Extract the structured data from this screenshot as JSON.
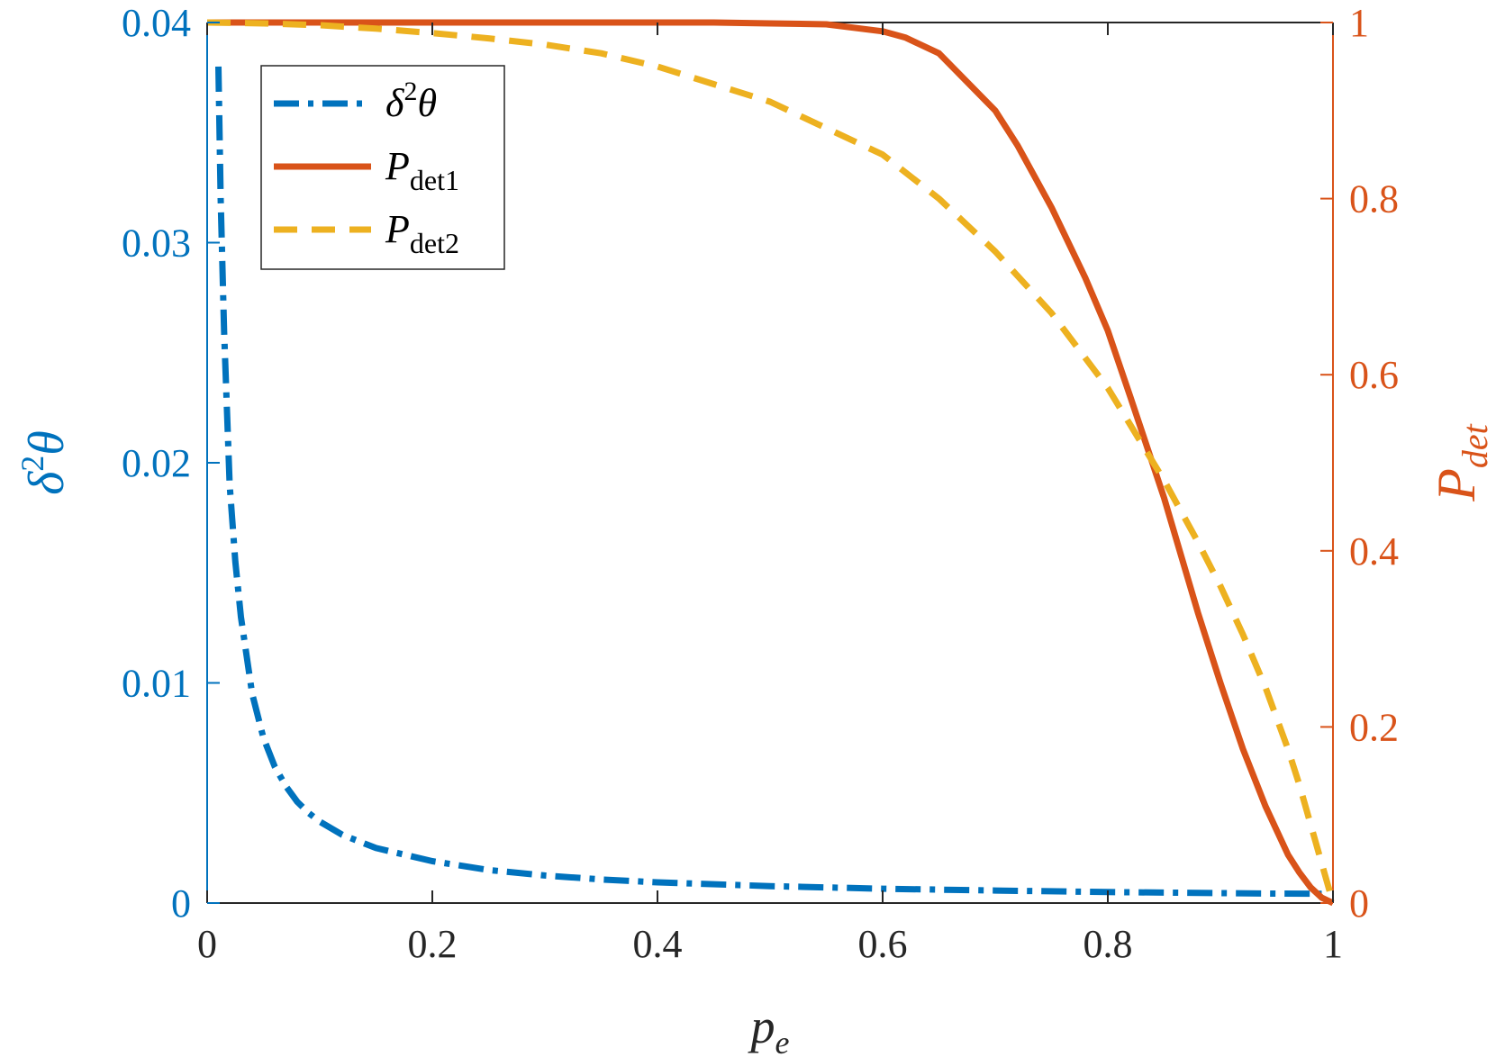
{
  "colors": {
    "left_axis": "#0072BD",
    "right_axis": "#D95319",
    "dashed": "#EDB120",
    "frame": "#262626"
  },
  "chart_data": {
    "type": "line",
    "xlabel": {
      "main": "p",
      "sub": "e"
    },
    "ylabel_left": {
      "main": "δ",
      "sup": "2",
      "tail": "θ"
    },
    "ylabel_right": {
      "main": "P",
      "sub": "det"
    },
    "xlim": [
      0,
      1
    ],
    "ylim_left": [
      0,
      0.04
    ],
    "ylim_right": [
      0,
      1
    ],
    "x_ticks": [
      "0",
      "0.2",
      "0.4",
      "0.6",
      "0.8",
      "1"
    ],
    "x_tick_values": [
      0,
      0.2,
      0.4,
      0.6,
      0.8,
      1
    ],
    "y_left_ticks": [
      "0",
      "0.01",
      "0.02",
      "0.03",
      "0.04"
    ],
    "y_left_tick_values": [
      0,
      0.01,
      0.02,
      0.03,
      0.04
    ],
    "y_right_ticks": [
      "0",
      "0.2",
      "0.4",
      "0.6",
      "0.8",
      "1"
    ],
    "y_right_tick_values": [
      0,
      0.2,
      0.4,
      0.6,
      0.8,
      1
    ],
    "grid": false,
    "legend_position": "top-left",
    "series": [
      {
        "legend": {
          "main": "δ",
          "sup": "2",
          "tail": "θ"
        },
        "axis": "left",
        "style": "dashdot",
        "x": [
          0.01,
          0.012,
          0.015,
          0.02,
          0.025,
          0.03,
          0.04,
          0.05,
          0.06,
          0.07,
          0.08,
          0.09,
          0.1,
          0.12,
          0.15,
          0.2,
          0.25,
          0.3,
          0.35,
          0.4,
          0.5,
          0.6,
          0.7,
          0.8,
          0.9,
          0.95,
          0.99
        ],
        "y": [
          0.038,
          0.032,
          0.026,
          0.019,
          0.0155,
          0.013,
          0.0095,
          0.0075,
          0.0062,
          0.0053,
          0.0046,
          0.0041,
          0.0037,
          0.0031,
          0.0025,
          0.0019,
          0.0015,
          0.00125,
          0.00107,
          0.00094,
          0.00077,
          0.00065,
          0.00057,
          0.0005,
          0.00045,
          0.00043,
          0.00042
        ]
      },
      {
        "legend": {
          "main": "P",
          "sub": "det1"
        },
        "axis": "right",
        "style": "solid",
        "x": [
          0,
          0.1,
          0.2,
          0.3,
          0.4,
          0.45,
          0.5,
          0.55,
          0.6,
          0.62,
          0.65,
          0.7,
          0.72,
          0.75,
          0.78,
          0.8,
          0.82,
          0.85,
          0.88,
          0.9,
          0.92,
          0.94,
          0.96,
          0.97,
          0.98,
          0.99,
          1.0
        ],
        "y": [
          1,
          1,
          1,
          1,
          1,
          1,
          0.999,
          0.998,
          0.99,
          0.983,
          0.965,
          0.9,
          0.86,
          0.79,
          0.71,
          0.65,
          0.575,
          0.46,
          0.33,
          0.25,
          0.175,
          0.11,
          0.055,
          0.035,
          0.018,
          0.006,
          0
        ]
      },
      {
        "legend": {
          "main": "P",
          "sub": "det2"
        },
        "axis": "right",
        "style": "dashed",
        "x": [
          0,
          0.05,
          0.1,
          0.15,
          0.2,
          0.25,
          0.3,
          0.35,
          0.4,
          0.45,
          0.5,
          0.55,
          0.6,
          0.65,
          0.7,
          0.75,
          0.8,
          0.85,
          0.88,
          0.9,
          0.92,
          0.94,
          0.96,
          0.97,
          0.98,
          0.99,
          1.0
        ],
        "y": [
          1,
          0.999,
          0.997,
          0.993,
          0.988,
          0.982,
          0.975,
          0.965,
          0.95,
          0.93,
          0.91,
          0.88,
          0.85,
          0.8,
          0.74,
          0.67,
          0.585,
          0.48,
          0.41,
          0.36,
          0.305,
          0.245,
          0.175,
          0.135,
          0.09,
          0.045,
          0
        ]
      }
    ]
  }
}
